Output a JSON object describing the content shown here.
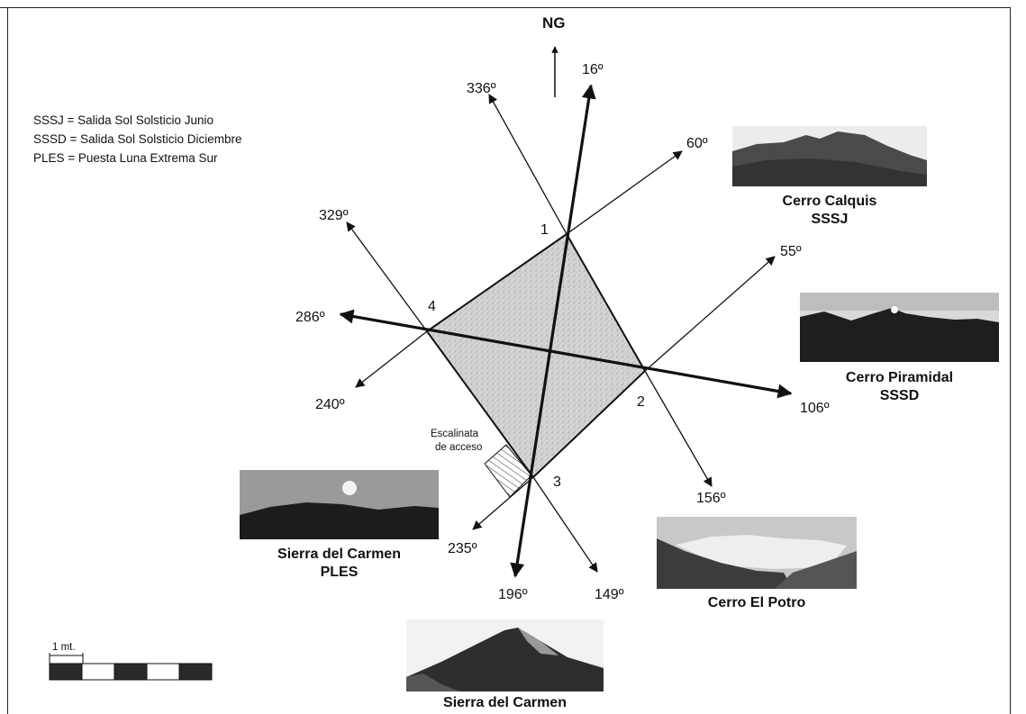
{
  "north": {
    "label": "NG"
  },
  "legend": [
    "SSSJ = Salida Sol Solsticio Junio",
    "SSSD = Salida Sol Solsticio Diciembre",
    "PLES = Puesta Luna Extrema Sur"
  ],
  "corners": [
    "1",
    "2",
    "3",
    "4"
  ],
  "azimuths": {
    "a16": "16º",
    "a196": "196º",
    "a106": "106º",
    "a286": "286º",
    "a336": "336º",
    "a149": "149º",
    "a60": "60º",
    "a240": "240º",
    "a55": "55º",
    "a235": "235º",
    "a329": "329º",
    "a156": "156º"
  },
  "stair_label": [
    "Escalinata",
    "de acceso"
  ],
  "scale": {
    "label": "1 mt."
  },
  "photos": {
    "calquis": {
      "name": "Cerro Calquis",
      "code": "SSSJ"
    },
    "piramidal": {
      "name": "Cerro Piramidal",
      "code": "SSSD"
    },
    "potro": {
      "name": "Cerro El Potro"
    },
    "carmen_ples": {
      "name": "Sierra del Carmen",
      "code": "PLES"
    },
    "carmen": {
      "name": "Sierra del Carmen"
    }
  }
}
